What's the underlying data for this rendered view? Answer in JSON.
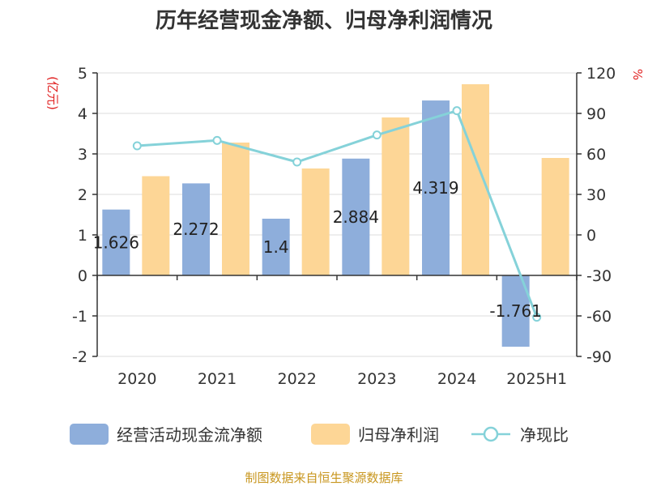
{
  "chart_data": {
    "type": "bar",
    "title": "历年经营现金净额、归母净利润情况",
    "categories": [
      "2020",
      "2021",
      "2022",
      "2023",
      "2024",
      "2025H1"
    ],
    "series": [
      {
        "name": "经营活动现金流净额",
        "kind": "bar",
        "axis": "left",
        "color": "#8eaedb",
        "values": [
          1.626,
          2.272,
          1.4,
          2.884,
          4.319,
          -1.761
        ]
      },
      {
        "name": "归母净利润",
        "kind": "bar",
        "axis": "left",
        "color": "#fdd696",
        "values": [
          2.45,
          3.28,
          2.64,
          3.9,
          4.72,
          2.9
        ]
      },
      {
        "name": "净现比",
        "kind": "line",
        "axis": "right",
        "color": "#85d2d9",
        "values": [
          66,
          70,
          54,
          74,
          92,
          -61
        ]
      }
    ],
    "data_labels": [
      "1.626",
      "2.272",
      "1.4",
      "2.884",
      "4.319",
      "-1.761"
    ],
    "y_left": {
      "unit": "(亿元)",
      "ylim": [
        -2,
        5
      ],
      "ticks": [
        "5",
        "4",
        "3",
        "2",
        "1",
        "0",
        "-1",
        "-2"
      ]
    },
    "y_right": {
      "unit": "%",
      "ylim": [
        -90,
        120
      ],
      "ticks": [
        "120",
        "90",
        "60",
        "30",
        "0",
        "-30",
        "-60",
        "-90"
      ]
    },
    "grid": true,
    "legend_position": "bottom",
    "source": "制图数据来自恒生聚源数据库"
  }
}
